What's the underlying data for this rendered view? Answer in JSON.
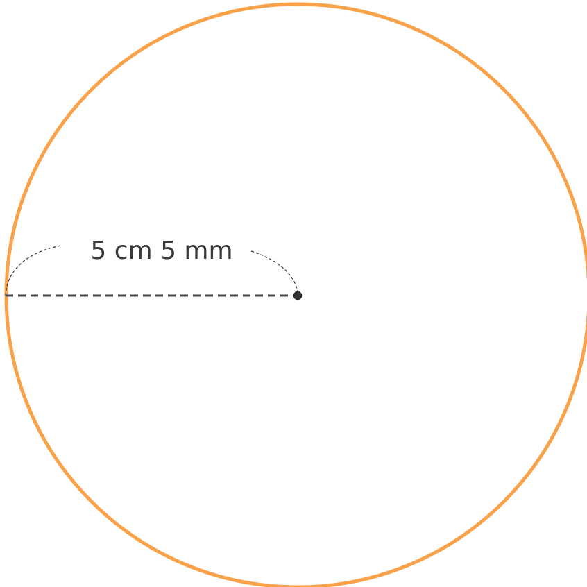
{
  "diagram": {
    "radius_label": "5 cm 5 mm"
  },
  "colors": {
    "circle_stroke": "#F9A24A",
    "radius_line": "#444444",
    "center_point": "#333333",
    "arc": "#333333"
  }
}
